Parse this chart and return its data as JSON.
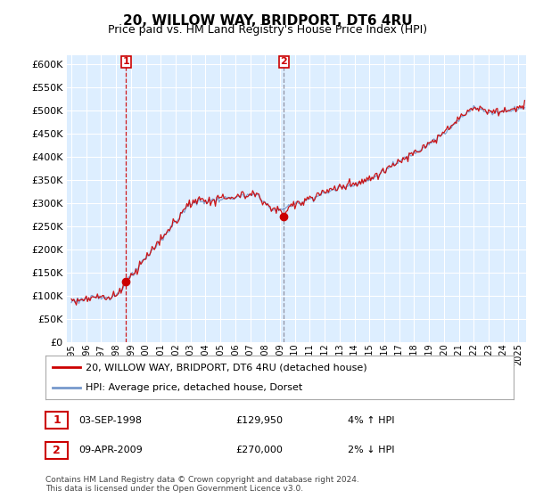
{
  "title": "20, WILLOW WAY, BRIDPORT, DT6 4RU",
  "subtitle": "Price paid vs. HM Land Registry's House Price Index (HPI)",
  "ylim": [
    0,
    620000
  ],
  "yticks": [
    0,
    50000,
    100000,
    150000,
    200000,
    250000,
    300000,
    350000,
    400000,
    450000,
    500000,
    550000,
    600000
  ],
  "bg_color": "#ffffff",
  "chart_bg_color": "#ddeeff",
  "grid_color": "#ffffff",
  "sale1_price": 129950,
  "sale2_price": 270000,
  "legend_line1": "20, WILLOW WAY, BRIDPORT, DT6 4RU (detached house)",
  "legend_line2": "HPI: Average price, detached house, Dorset",
  "table_row1": [
    "1",
    "03-SEP-1998",
    "£129,950",
    "4% ↑ HPI"
  ],
  "table_row2": [
    "2",
    "09-APR-2009",
    "£270,000",
    "2% ↓ HPI"
  ],
  "footer": "Contains HM Land Registry data © Crown copyright and database right 2024.\nThis data is licensed under the Open Government Licence v3.0.",
  "hpi_color": "#7799cc",
  "price_color": "#cc0000",
  "marker_color": "#cc0000",
  "vline1_color": "#cc0000",
  "vline2_color": "#888899",
  "sale1_x": 1998.67,
  "sale2_x": 2009.25
}
